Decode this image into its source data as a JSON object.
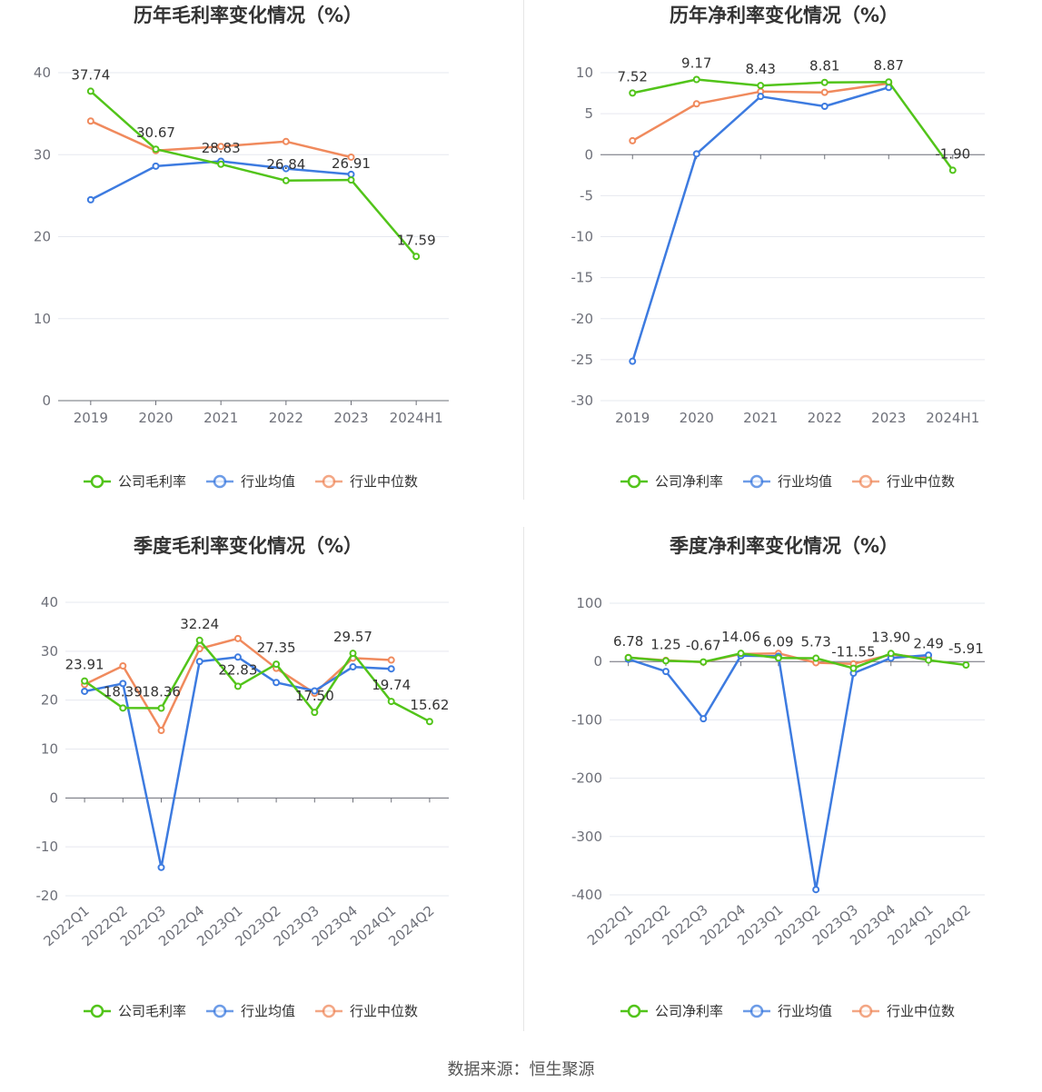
{
  "source": "数据来源：恒生聚源",
  "chart_data": [
    {
      "type": "line",
      "title": "历年毛利率变化情况（%）",
      "categories": [
        "2019",
        "2020",
        "2021",
        "2022",
        "2023",
        "2024H1"
      ],
      "ylim": [
        0,
        40
      ],
      "yticks": [
        0,
        10,
        20,
        30,
        40
      ],
      "rotate_x_labels": false,
      "grid": true,
      "legend_position": "bottom",
      "series": [
        {
          "name": "公司毛利率",
          "color": "#52c41a",
          "values": [
            37.74,
            30.67,
            28.83,
            26.84,
            26.91,
            17.59
          ],
          "labels": [
            "37.74",
            "30.67",
            "28.83",
            "26.84",
            "26.91",
            "17.59"
          ]
        },
        {
          "name": "行业均值",
          "color": "#3d7be0",
          "values": [
            24.5,
            28.6,
            29.2,
            28.3,
            27.6,
            null
          ]
        },
        {
          "name": "行业中位数",
          "color": "#f08a5d",
          "values": [
            34.1,
            30.5,
            31.0,
            31.6,
            29.7,
            null
          ]
        }
      ]
    },
    {
      "type": "line",
      "title": "历年净利率变化情况（%）",
      "categories": [
        "2019",
        "2020",
        "2021",
        "2022",
        "2023",
        "2024H1"
      ],
      "ylim": [
        -30,
        10
      ],
      "yticks": [
        -30,
        -25,
        -20,
        -15,
        -10,
        -5,
        0,
        5,
        10
      ],
      "rotate_x_labels": false,
      "grid": true,
      "legend_position": "bottom",
      "series": [
        {
          "name": "公司净利率",
          "color": "#52c41a",
          "values": [
            7.52,
            9.17,
            8.43,
            8.81,
            8.87,
            -1.9
          ],
          "labels": [
            "7.52",
            "9.17",
            "8.43",
            "8.81",
            "8.87",
            "-1.90"
          ]
        },
        {
          "name": "行业均值",
          "color": "#3d7be0",
          "values": [
            -25.2,
            0.1,
            7.1,
            5.9,
            8.2,
            null
          ]
        },
        {
          "name": "行业中位数",
          "color": "#f08a5d",
          "values": [
            1.7,
            6.2,
            7.7,
            7.6,
            8.7,
            null
          ]
        }
      ]
    },
    {
      "type": "line",
      "title": "季度毛利率变化情况（%）",
      "categories": [
        "2022Q1",
        "2022Q2",
        "2022Q3",
        "2022Q4",
        "2023Q1",
        "2023Q2",
        "2023Q3",
        "2023Q4",
        "2024Q1",
        "2024Q2"
      ],
      "ylim": [
        -20,
        40
      ],
      "yticks": [
        -20,
        -10,
        0,
        10,
        20,
        30,
        40
      ],
      "rotate_x_labels": true,
      "grid": true,
      "legend_position": "bottom",
      "series": [
        {
          "name": "公司毛利率",
          "color": "#52c41a",
          "values": [
            23.91,
            18.39,
            18.36,
            32.24,
            22.83,
            27.35,
            17.5,
            29.57,
            19.74,
            15.62
          ],
          "labels": [
            "23.91",
            "18.39",
            "18.36",
            "32.24",
            "22.83",
            "27.35",
            "17.50",
            "29.57",
            "19.74",
            "15.62"
          ]
        },
        {
          "name": "行业均值",
          "color": "#3d7be0",
          "values": [
            21.8,
            23.4,
            -14.2,
            27.9,
            28.8,
            23.6,
            21.9,
            26.8,
            26.4,
            null
          ]
        },
        {
          "name": "行业中位数",
          "color": "#f08a5d",
          "values": [
            23.2,
            27.0,
            13.8,
            30.5,
            32.6,
            26.5,
            21.4,
            28.6,
            28.2,
            null
          ]
        }
      ]
    },
    {
      "type": "line",
      "title": "季度净利率变化情况（%）",
      "categories": [
        "2022Q1",
        "2022Q2",
        "2022Q3",
        "2022Q4",
        "2023Q1",
        "2023Q2",
        "2023Q3",
        "2023Q4",
        "2024Q1",
        "2024Q2"
      ],
      "ylim": [
        -400,
        100
      ],
      "yticks": [
        -400,
        -300,
        -200,
        -100,
        0,
        100
      ],
      "rotate_x_labels": true,
      "grid": true,
      "legend_position": "bottom",
      "series": [
        {
          "name": "公司净利率",
          "color": "#52c41a",
          "values": [
            6.78,
            1.25,
            -0.67,
            14.06,
            6.09,
            5.73,
            -11.55,
            13.9,
            2.49,
            -5.91
          ],
          "labels": [
            "6.78",
            "1.25",
            "-0.67",
            "14.06",
            "6.09",
            "5.73",
            "-11.55",
            "13.90",
            "2.49",
            "-5.91"
          ]
        },
        {
          "name": "行业均值",
          "color": "#3d7be0",
          "values": [
            4,
            -17,
            -98,
            10,
            9,
            -391,
            -20,
            6,
            11,
            null
          ]
        },
        {
          "name": "行业中位数",
          "color": "#f08a5d",
          "values": [
            7,
            2,
            -1,
            13,
            14,
            -2,
            -4,
            12,
            6,
            null
          ]
        }
      ]
    }
  ]
}
